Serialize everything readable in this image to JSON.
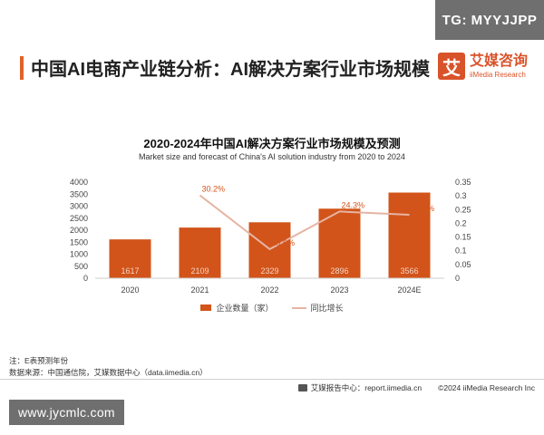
{
  "watermark_top": "TG: MYYJJPP",
  "headline": "中国AI电商产业链分析：AI解决方案行业市场规模",
  "brand": {
    "logo_char": "艾",
    "name_cn": "艾媒咨询",
    "name_en": "iiMedia Research"
  },
  "chart_data": {
    "type": "bar",
    "title": "2020-2024年中国AI解决方案行业市场规模及预测",
    "subtitle": "Market size and forecast of China's AI solution industry from 2020 to 2024",
    "categories": [
      "2020",
      "2021",
      "2022",
      "2023",
      "2024E"
    ],
    "series": [
      {
        "name": "企业数量（家）",
        "type": "bar",
        "axis": "left",
        "values": [
          1617,
          2109,
          2329,
          2896,
          3566
        ],
        "labels": [
          "1617",
          "2109",
          "2329",
          "2896",
          "3566"
        ]
      },
      {
        "name": "同比增长",
        "type": "line",
        "axis": "right",
        "values": [
          null,
          0.302,
          0.106,
          0.243,
          0.231
        ],
        "labels": [
          "",
          "30.2%",
          "10.6%",
          "24.3%",
          "23.1%"
        ]
      }
    ],
    "y_left": {
      "min": 0,
      "max": 4000,
      "ticks": [
        "0",
        "500",
        "1000",
        "1500",
        "2000",
        "2500",
        "3000",
        "3500",
        "4000"
      ]
    },
    "y_right": {
      "min": 0,
      "max": 0.35,
      "ticks": [
        "0",
        "0.05",
        "0.1",
        "0.15",
        "0.2",
        "0.25",
        "0.3",
        "0.35"
      ]
    },
    "colors": {
      "bar": "#d2541a",
      "line": "#e6b4a4"
    },
    "legend_position": "bottom",
    "grid": false
  },
  "notes": {
    "note": "注：E表预测年份",
    "source": "数据来源：中国通信院，艾媒数据中心（data.iimedia.cn）"
  },
  "footer": {
    "source_line": "艾媒报告中心：report.iimedia.cn",
    "copyright": "©2024  iiMedia Research  Inc"
  },
  "watermark_bottom": "www.jycmlc.com"
}
